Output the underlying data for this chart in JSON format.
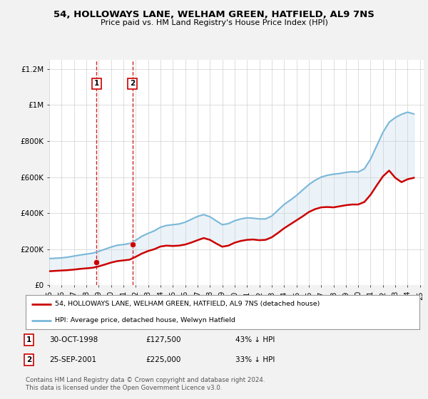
{
  "title": "54, HOLLOWAYS LANE, WELHAM GREEN, HATFIELD, AL9 7NS",
  "subtitle": "Price paid vs. HM Land Registry's House Price Index (HPI)",
  "legend_line1": "54, HOLLOWAYS LANE, WELHAM GREEN, HATFIELD, AL9 7NS (detached house)",
  "legend_line2": "HPI: Average price, detached house, Welwyn Hatfield",
  "footer": "Contains HM Land Registry data © Crown copyright and database right 2024.\nThis data is licensed under the Open Government Licence v3.0.",
  "table_rows": [
    {
      "num": "1",
      "date": "30-OCT-1998",
      "price": "£127,500",
      "hpi": "43% ↓ HPI"
    },
    {
      "num": "2",
      "date": "25-SEP-2001",
      "price": "£225,000",
      "hpi": "33% ↓ HPI"
    }
  ],
  "transaction_points": [
    {
      "year": 1998.83,
      "price": 127500,
      "label": "1"
    },
    {
      "year": 2001.73,
      "price": 225000,
      "label": "2"
    }
  ],
  "vlines": [
    1998.83,
    2001.73
  ],
  "hpi_color": "#7ab8d9",
  "hpi_fill_color": "#c8dff0",
  "price_color": "#cc0000",
  "vline_color": "#cc0000",
  "point_color": "#cc0000",
  "background_color": "#f2f2f2",
  "plot_bg_color": "#ffffff",
  "ylim": [
    0,
    1250000
  ],
  "yticks": [
    0,
    200000,
    400000,
    600000,
    800000,
    1000000,
    1200000
  ],
  "ytick_labels": [
    "£0",
    "£200K",
    "£400K",
    "£600K",
    "£800K",
    "£1M",
    "£1.2M"
  ],
  "hpi_data": {
    "years": [
      1995.0,
      1995.5,
      1996.0,
      1996.5,
      1997.0,
      1997.5,
      1998.0,
      1998.5,
      1999.0,
      1999.5,
      2000.0,
      2000.5,
      2001.0,
      2001.5,
      2002.0,
      2002.5,
      2003.0,
      2003.5,
      2004.0,
      2004.5,
      2005.0,
      2005.5,
      2006.0,
      2006.5,
      2007.0,
      2007.5,
      2008.0,
      2008.5,
      2009.0,
      2009.5,
      2010.0,
      2010.5,
      2011.0,
      2011.5,
      2012.0,
      2012.5,
      2013.0,
      2013.5,
      2014.0,
      2014.5,
      2015.0,
      2015.5,
      2016.0,
      2016.5,
      2017.0,
      2017.5,
      2018.0,
      2018.5,
      2019.0,
      2019.5,
      2020.0,
      2020.5,
      2021.0,
      2021.5,
      2022.0,
      2022.5,
      2023.0,
      2023.5,
      2024.0,
      2024.5
    ],
    "values": [
      148000,
      150000,
      152000,
      156000,
      162000,
      168000,
      173000,
      178000,
      188000,
      200000,
      212000,
      222000,
      226000,
      232000,
      250000,
      272000,
      288000,
      302000,
      322000,
      332000,
      336000,
      340000,
      350000,
      366000,
      382000,
      392000,
      380000,
      358000,
      336000,
      342000,
      358000,
      368000,
      374000,
      372000,
      368000,
      368000,
      384000,
      416000,
      448000,
      472000,
      498000,
      528000,
      558000,
      582000,
      600000,
      610000,
      616000,
      620000,
      626000,
      630000,
      628000,
      646000,
      700000,
      774000,
      848000,
      904000,
      930000,
      948000,
      960000,
      950000
    ]
  },
  "price_data": {
    "years": [
      1995.0,
      1995.5,
      1996.0,
      1996.5,
      1997.0,
      1997.5,
      1998.0,
      1998.5,
      1999.0,
      1999.5,
      2000.0,
      2000.5,
      2001.0,
      2001.5,
      2002.0,
      2002.5,
      2003.0,
      2003.5,
      2004.0,
      2004.5,
      2005.0,
      2005.5,
      2006.0,
      2006.5,
      2007.0,
      2007.5,
      2008.0,
      2008.5,
      2009.0,
      2009.5,
      2010.0,
      2010.5,
      2011.0,
      2011.5,
      2012.0,
      2012.5,
      2013.0,
      2013.5,
      2014.0,
      2014.5,
      2015.0,
      2015.5,
      2016.0,
      2016.5,
      2017.0,
      2017.5,
      2018.0,
      2018.5,
      2019.0,
      2019.5,
      2020.0,
      2020.5,
      2021.0,
      2021.5,
      2022.0,
      2022.5,
      2023.0,
      2023.5,
      2024.0,
      2024.5
    ],
    "values": [
      78000,
      80000,
      82000,
      84000,
      87000,
      91000,
      94000,
      97000,
      105000,
      115000,
      126000,
      134000,
      138000,
      142000,
      158000,
      176000,
      190000,
      200000,
      215000,
      220000,
      218000,
      220000,
      226000,
      237000,
      250000,
      262000,
      252000,
      232000,
      214000,
      220000,
      236000,
      246000,
      252000,
      254000,
      250000,
      252000,
      266000,
      290000,
      316000,
      338000,
      360000,
      382000,
      406000,
      422000,
      432000,
      434000,
      432000,
      438000,
      444000,
      448000,
      448000,
      462000,
      502000,
      554000,
      604000,
      636000,
      596000,
      572000,
      588000,
      596000
    ]
  },
  "xlim": [
    1995.0,
    2025.3
  ],
  "xtick_years": [
    1995,
    1996,
    1997,
    1998,
    1999,
    2000,
    2001,
    2002,
    2003,
    2004,
    2005,
    2006,
    2007,
    2008,
    2009,
    2010,
    2011,
    2012,
    2013,
    2014,
    2015,
    2016,
    2017,
    2018,
    2019,
    2020,
    2021,
    2022,
    2023,
    2024,
    2025
  ]
}
